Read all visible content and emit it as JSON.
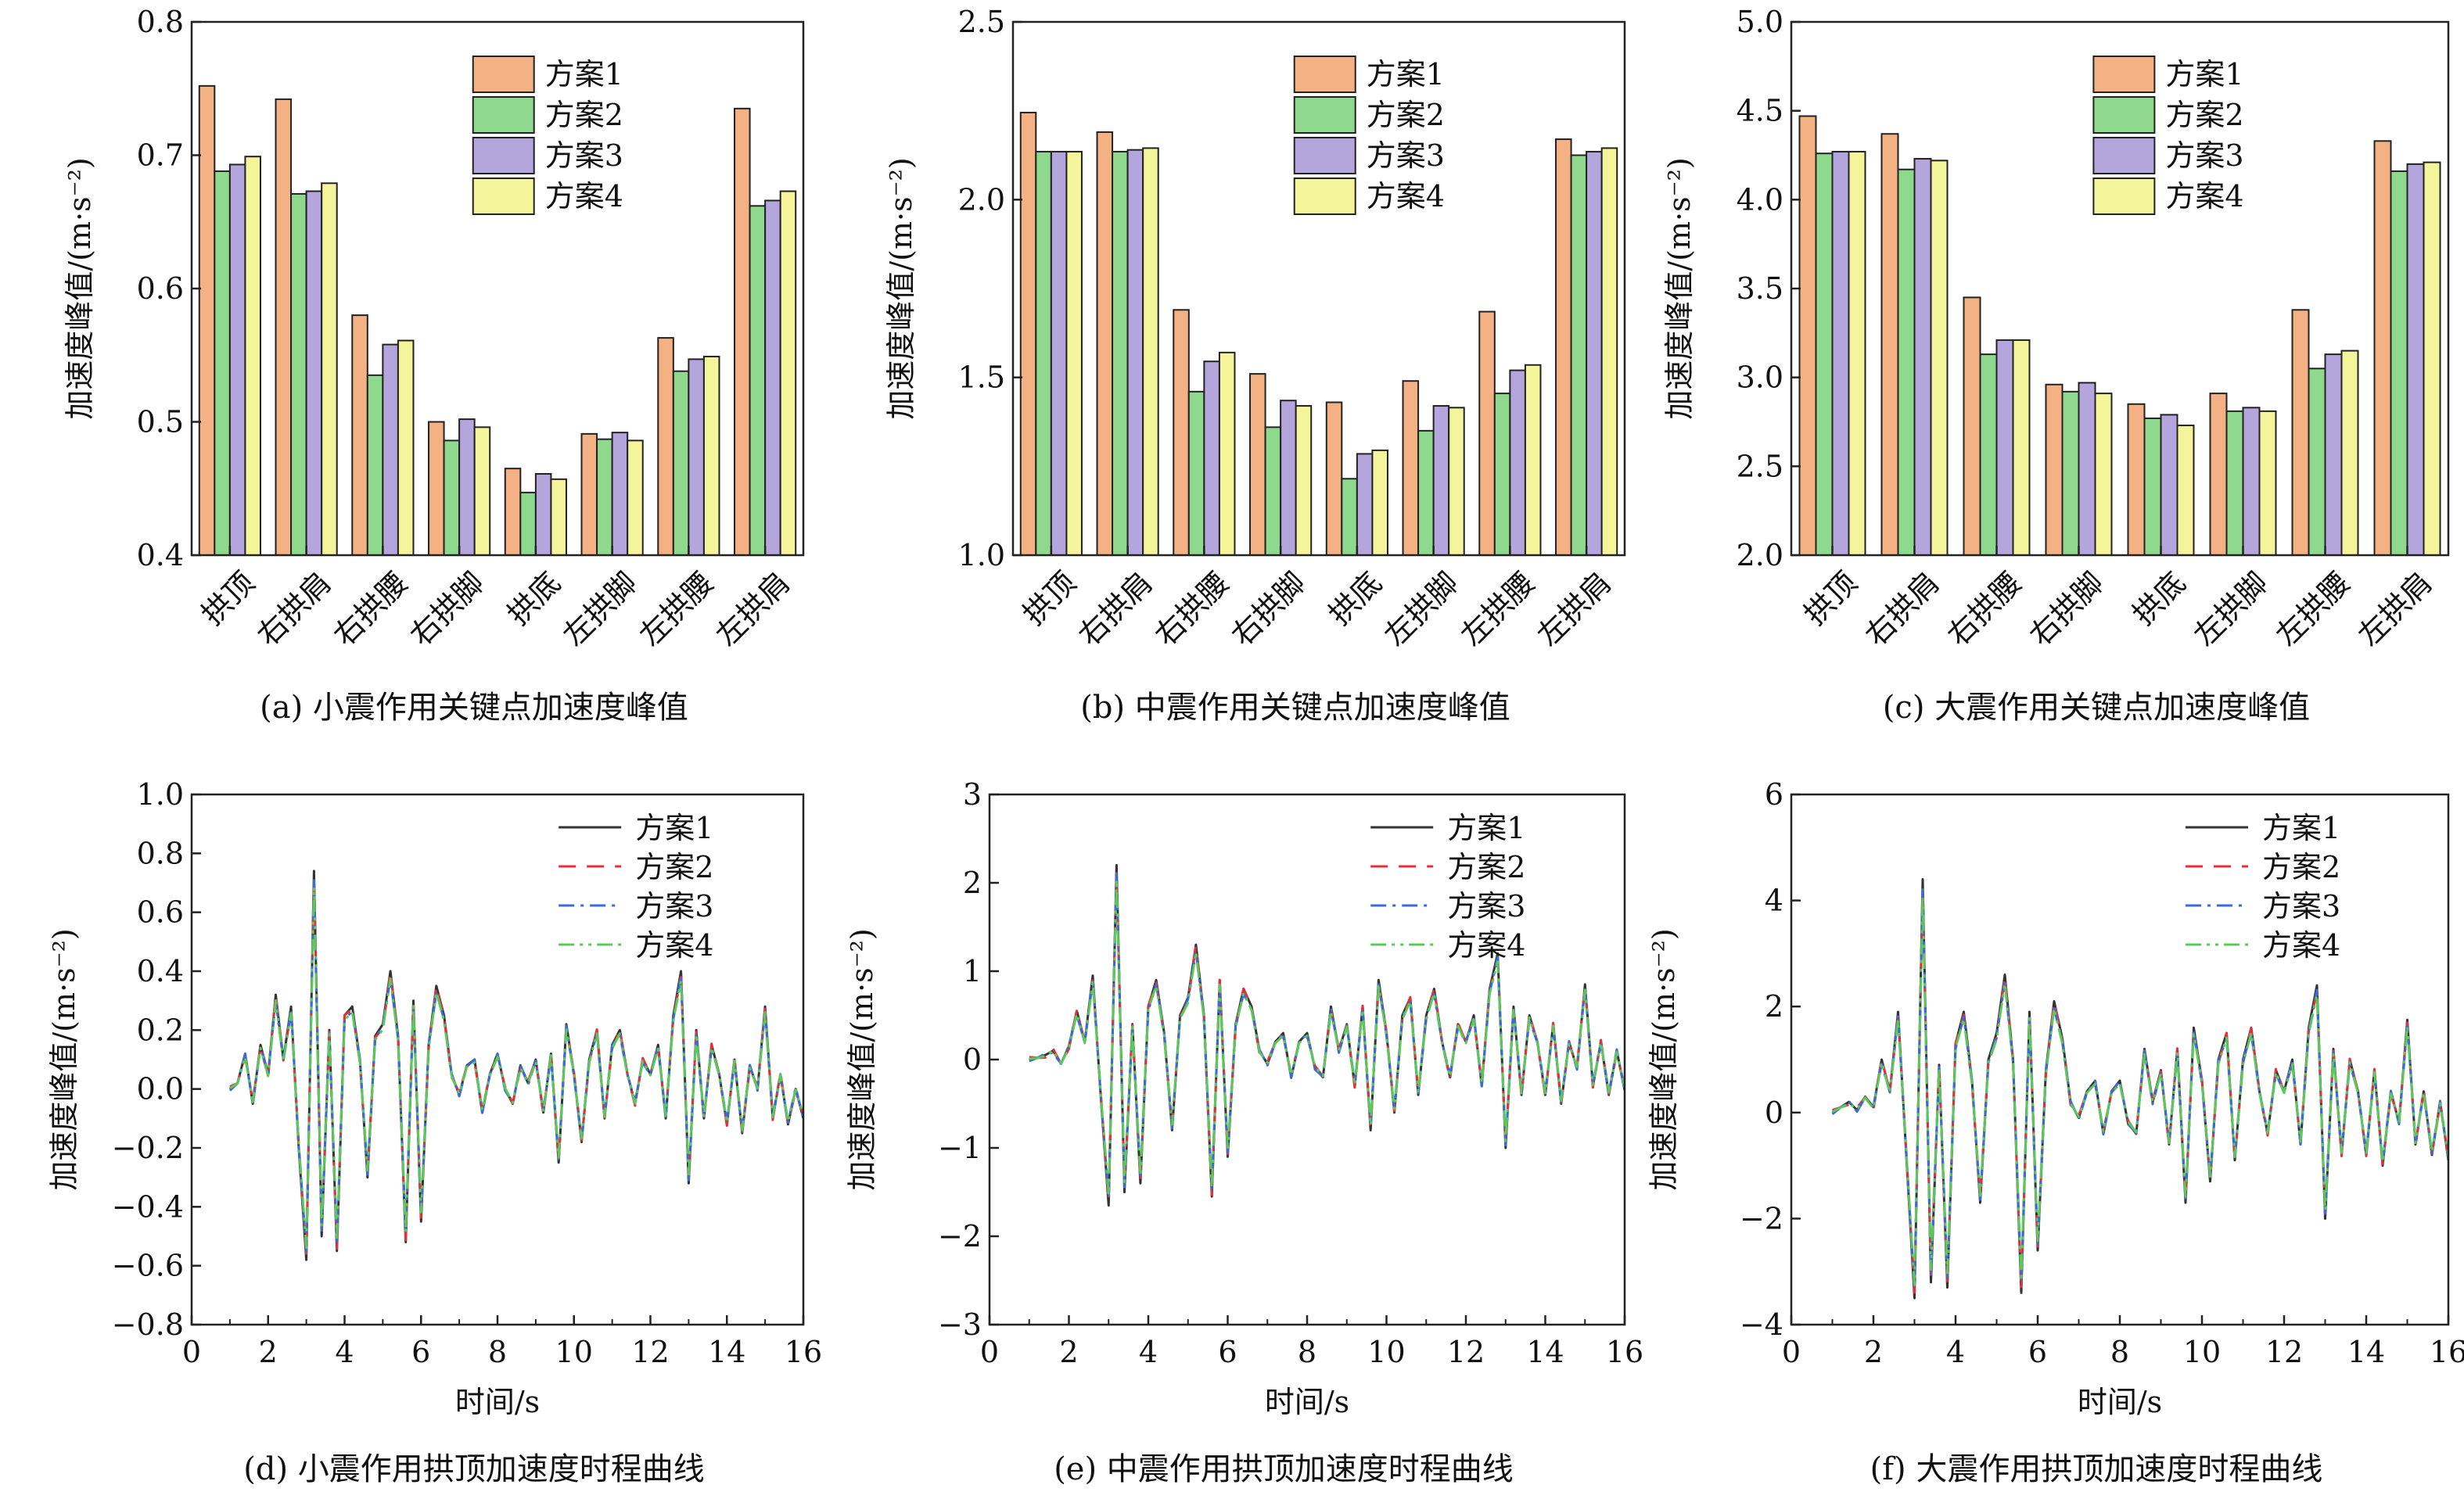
{
  "charts": [
    {
      "id": "a",
      "type": "bar",
      "caption": "(a) 小震作用关键点加速度峰值",
      "ylabel": "加速度峰值/(m·s⁻²)",
      "xlabel": "",
      "ylim": [
        0.4,
        0.8
      ],
      "yticks": [
        "0.4",
        "0.5",
        "0.6",
        "0.7",
        "0.8"
      ],
      "legend_position": "top-right",
      "categories": [
        "拱顶",
        "右拱肩",
        "右拱腰",
        "右拱脚",
        "拱底",
        "左拱脚",
        "左拱腰",
        "左拱肩"
      ],
      "series": [
        {
          "name": "方案1",
          "color": "#F4B183",
          "values": [
            0.752,
            0.742,
            0.58,
            0.5,
            0.465,
            0.491,
            0.563,
            0.735
          ]
        },
        {
          "name": "方案2",
          "color": "#8FD98F",
          "values": [
            0.688,
            0.671,
            0.535,
            0.486,
            0.447,
            0.487,
            0.538,
            0.662
          ]
        },
        {
          "name": "方案3",
          "color": "#B4A6DC",
          "values": [
            0.693,
            0.673,
            0.558,
            0.502,
            0.461,
            0.492,
            0.547,
            0.666
          ]
        },
        {
          "name": "方案4",
          "color": "#F4F49A",
          "values": [
            0.699,
            0.679,
            0.561,
            0.496,
            0.457,
            0.486,
            0.549,
            0.673
          ]
        }
      ]
    },
    {
      "id": "b",
      "type": "bar",
      "caption": "(b) 中震作用关键点加速度峰值",
      "ylabel": "加速度峰值/(m·s⁻²)",
      "xlabel": "",
      "ylim": [
        1.0,
        2.5
      ],
      "yticks": [
        "1.0",
        "1.5",
        "2.0",
        "2.5"
      ],
      "legend_position": "top-right",
      "categories": [
        "拱顶",
        "右拱肩",
        "右拱腰",
        "右拱脚",
        "拱底",
        "左拱脚",
        "左拱腰",
        "左拱肩"
      ],
      "series": [
        {
          "name": "方案1",
          "color": "#F4B183",
          "values": [
            2.245,
            2.19,
            1.69,
            1.51,
            1.43,
            1.49,
            1.685,
            2.17
          ]
        },
        {
          "name": "方案2",
          "color": "#8FD98F",
          "values": [
            2.135,
            2.135,
            1.46,
            1.36,
            1.215,
            1.35,
            1.455,
            2.125
          ]
        },
        {
          "name": "方案3",
          "color": "#B4A6DC",
          "values": [
            2.135,
            2.14,
            1.545,
            1.435,
            1.285,
            1.42,
            1.52,
            2.135
          ]
        },
        {
          "name": "方案4",
          "color": "#F4F49A",
          "values": [
            2.135,
            2.145,
            1.57,
            1.42,
            1.295,
            1.415,
            1.535,
            2.145
          ]
        }
      ]
    },
    {
      "id": "c",
      "type": "bar",
      "caption": "(c) 大震作用关键点加速度峰值",
      "ylabel": "加速度峰值/(m·s⁻²)",
      "xlabel": "",
      "ylim": [
        2.0,
        5.0
      ],
      "yticks": [
        "2.0",
        "2.5",
        "3.0",
        "3.5",
        "4.0",
        "4.5",
        "5.0"
      ],
      "legend_position": "top-right",
      "categories": [
        "拱顶",
        "右拱肩",
        "右拱腰",
        "右拱脚",
        "拱底",
        "左拱脚",
        "左拱腰",
        "左拱肩"
      ],
      "series": [
        {
          "name": "方案1",
          "color": "#F4B183",
          "values": [
            4.47,
            4.37,
            3.45,
            2.96,
            2.85,
            2.91,
            3.38,
            4.33
          ]
        },
        {
          "name": "方案2",
          "color": "#8FD98F",
          "values": [
            4.26,
            4.17,
            3.13,
            2.92,
            2.77,
            2.81,
            3.05,
            4.16
          ]
        },
        {
          "name": "方案3",
          "color": "#B4A6DC",
          "values": [
            4.27,
            4.23,
            3.21,
            2.97,
            2.79,
            2.83,
            3.13,
            4.2
          ]
        },
        {
          "name": "方案4",
          "color": "#F4F49A",
          "values": [
            4.27,
            4.22,
            3.21,
            2.91,
            2.73,
            2.81,
            3.15,
            4.21
          ]
        }
      ]
    },
    {
      "id": "d",
      "type": "line",
      "caption": "(d) 小震作用拱顶加速度时程曲线",
      "ylabel": "加速度峰值/(m·s⁻²)",
      "xlabel": "时间/s",
      "xlim": [
        0,
        16
      ],
      "ylim": [
        -0.8,
        1.0
      ],
      "xticks": [
        "0",
        "2",
        "4",
        "6",
        "8",
        "10",
        "12",
        "14",
        "16"
      ],
      "yticks": [
        "−0.8",
        "−0.6",
        "−0.4",
        "−0.2",
        "0.0",
        "0.2",
        "0.4",
        "0.6",
        "0.8",
        "1.0"
      ],
      "legend_position": "top-right",
      "series": [
        {
          "name": "方案1",
          "color": "#333333",
          "dash": "solid"
        },
        {
          "name": "方案2",
          "color": "#E5303A",
          "dash": "dashed"
        },
        {
          "name": "方案3",
          "color": "#3A6BD8",
          "dash": "dashdot"
        },
        {
          "name": "方案4",
          "color": "#5CC85C",
          "dash": "dashdotdot"
        }
      ],
      "x": [
        1.0,
        1.2,
        1.4,
        1.6,
        1.8,
        2.0,
        2.2,
        2.4,
        2.6,
        2.8,
        3.0,
        3.2,
        3.4,
        3.6,
        3.8,
        4.0,
        4.2,
        4.4,
        4.6,
        4.8,
        5.0,
        5.2,
        5.4,
        5.6,
        5.8,
        6.0,
        6.2,
        6.4,
        6.6,
        6.8,
        7.0,
        7.2,
        7.4,
        7.6,
        7.8,
        8.0,
        8.2,
        8.4,
        8.6,
        8.8,
        9.0,
        9.2,
        9.4,
        9.6,
        9.8,
        10.0,
        10.2,
        10.4,
        10.6,
        10.8,
        11.0,
        11.2,
        11.4,
        11.6,
        11.8,
        12.0,
        12.2,
        12.4,
        12.6,
        12.8,
        13.0,
        13.2,
        13.4,
        13.6,
        13.8,
        14.0,
        14.2,
        14.4,
        14.6,
        14.8,
        15.0,
        15.2,
        15.4,
        15.6,
        15.8,
        16.0
      ],
      "y_base": [
        0.0,
        0.02,
        0.12,
        -0.05,
        0.15,
        0.05,
        0.32,
        0.1,
        0.28,
        -0.2,
        -0.58,
        0.74,
        -0.5,
        0.2,
        -0.55,
        0.25,
        0.28,
        0.1,
        -0.3,
        0.18,
        0.22,
        0.4,
        0.18,
        -0.52,
        0.3,
        -0.45,
        0.15,
        0.35,
        0.25,
        0.05,
        -0.02,
        0.08,
        0.1,
        -0.08,
        0.05,
        0.12,
        0.0,
        -0.05,
        0.08,
        0.02,
        0.1,
        -0.08,
        0.12,
        -0.25,
        0.22,
        0.05,
        -0.18,
        0.1,
        0.2,
        -0.1,
        0.15,
        0.2,
        0.05,
        -0.05,
        0.1,
        0.05,
        0.15,
        -0.1,
        0.25,
        0.4,
        -0.32,
        0.2,
        -0.1,
        0.15,
        0.05,
        -0.12,
        0.1,
        -0.15,
        0.08,
        0.0,
        0.28,
        -0.1,
        0.05,
        -0.12,
        0.0,
        -0.1
      ]
    },
    {
      "id": "e",
      "type": "line",
      "caption": "(e) 中震作用拱顶加速度时程曲线",
      "ylabel": "加速度峰值/(m·s⁻²)",
      "xlabel": "时间/s",
      "xlim": [
        0,
        16
      ],
      "ylim": [
        -3,
        3
      ],
      "xticks": [
        "0",
        "2",
        "4",
        "6",
        "8",
        "10",
        "12",
        "14",
        "16"
      ],
      "yticks": [
        "−3",
        "−2",
        "−1",
        "0",
        "1",
        "2",
        "3"
      ],
      "legend_position": "top-right",
      "series": [
        {
          "name": "方案1",
          "color": "#333333",
          "dash": "solid"
        },
        {
          "name": "方案2",
          "color": "#E5303A",
          "dash": "dashed"
        },
        {
          "name": "方案3",
          "color": "#3A6BD8",
          "dash": "dashdot"
        },
        {
          "name": "方案4",
          "color": "#5CC85C",
          "dash": "dashdotdot"
        }
      ],
      "x": [
        1.0,
        1.2,
        1.4,
        1.6,
        1.8,
        2.0,
        2.2,
        2.4,
        2.6,
        2.8,
        3.0,
        3.2,
        3.4,
        3.6,
        3.8,
        4.0,
        4.2,
        4.4,
        4.6,
        4.8,
        5.0,
        5.2,
        5.4,
        5.6,
        5.8,
        6.0,
        6.2,
        6.4,
        6.6,
        6.8,
        7.0,
        7.2,
        7.4,
        7.6,
        7.8,
        8.0,
        8.2,
        8.4,
        8.6,
        8.8,
        9.0,
        9.2,
        9.4,
        9.6,
        9.8,
        10.0,
        10.2,
        10.4,
        10.6,
        10.8,
        11.0,
        11.2,
        11.4,
        11.6,
        11.8,
        12.0,
        12.2,
        12.4,
        12.6,
        12.8,
        13.0,
        13.2,
        13.4,
        13.6,
        13.8,
        14.0,
        14.2,
        14.4,
        14.6,
        14.8,
        15.0,
        15.2,
        15.4,
        15.6,
        15.8,
        16.0
      ],
      "y_base": [
        0.0,
        0.02,
        0.05,
        0.1,
        -0.05,
        0.15,
        0.55,
        0.2,
        0.95,
        -0.4,
        -1.65,
        2.2,
        -1.5,
        0.4,
        -1.4,
        0.6,
        0.9,
        0.3,
        -0.8,
        0.5,
        0.7,
        1.3,
        0.5,
        -1.55,
        0.9,
        -1.1,
        0.4,
        0.8,
        0.6,
        0.1,
        -0.05,
        0.2,
        0.3,
        -0.2,
        0.2,
        0.3,
        -0.1,
        -0.2,
        0.6,
        0.1,
        0.4,
        -0.3,
        0.6,
        -0.8,
        0.9,
        0.3,
        -0.6,
        0.5,
        0.7,
        -0.4,
        0.5,
        0.8,
        0.2,
        -0.2,
        0.4,
        0.2,
        0.5,
        -0.3,
        0.8,
        1.2,
        -1.0,
        0.6,
        -0.4,
        0.5,
        0.2,
        -0.4,
        0.4,
        -0.5,
        0.2,
        -0.1,
        0.85,
        -0.3,
        0.2,
        -0.4,
        0.1,
        -0.35
      ]
    },
    {
      "id": "f",
      "type": "line",
      "caption": "(f) 大震作用拱顶加速度时程曲线",
      "ylabel": "加速度峰值/(m·s⁻²)",
      "xlabel": "时间/s",
      "xlim": [
        0,
        16
      ],
      "ylim": [
        -4,
        6
      ],
      "xticks": [
        "0",
        "2",
        "4",
        "6",
        "8",
        "10",
        "12",
        "14",
        "16"
      ],
      "yticks": [
        "−4",
        "−2",
        "0",
        "2",
        "4",
        "6"
      ],
      "legend_position": "top-right",
      "series": [
        {
          "name": "方案1",
          "color": "#333333",
          "dash": "solid"
        },
        {
          "name": "方案2",
          "color": "#E5303A",
          "dash": "dashed"
        },
        {
          "name": "方案3",
          "color": "#3A6BD8",
          "dash": "dashdot"
        },
        {
          "name": "方案4",
          "color": "#5CC85C",
          "dash": "dashdotdot"
        }
      ],
      "x": [
        1.0,
        1.2,
        1.4,
        1.6,
        1.8,
        2.0,
        2.2,
        2.4,
        2.6,
        2.8,
        3.0,
        3.2,
        3.4,
        3.6,
        3.8,
        4.0,
        4.2,
        4.4,
        4.6,
        4.8,
        5.0,
        5.2,
        5.4,
        5.6,
        5.8,
        6.0,
        6.2,
        6.4,
        6.6,
        6.8,
        7.0,
        7.2,
        7.4,
        7.6,
        7.8,
        8.0,
        8.2,
        8.4,
        8.6,
        8.8,
        9.0,
        9.2,
        9.4,
        9.6,
        9.8,
        10.0,
        10.2,
        10.4,
        10.6,
        10.8,
        11.0,
        11.2,
        11.4,
        11.6,
        11.8,
        12.0,
        12.2,
        12.4,
        12.6,
        12.8,
        13.0,
        13.2,
        13.4,
        13.6,
        13.8,
        14.0,
        14.2,
        14.4,
        14.6,
        14.8,
        15.0,
        15.2,
        15.4,
        15.6,
        15.8,
        16.0
      ],
      "y_base": [
        0.0,
        0.1,
        0.2,
        0.05,
        0.3,
        0.1,
        1.0,
        0.4,
        1.9,
        -0.8,
        -3.5,
        4.4,
        -3.2,
        0.9,
        -3.3,
        1.3,
        1.9,
        0.6,
        -1.7,
        1.0,
        1.5,
        2.6,
        1.0,
        -3.4,
        1.9,
        -2.6,
        0.8,
        2.1,
        1.4,
        0.2,
        -0.1,
        0.4,
        0.6,
        -0.4,
        0.4,
        0.6,
        -0.2,
        -0.4,
        1.2,
        0.2,
        0.8,
        -0.6,
        1.2,
        -1.7,
        1.6,
        0.6,
        -1.3,
        1.0,
        1.5,
        -0.9,
        1.0,
        1.6,
        0.4,
        -0.4,
        0.8,
        0.4,
        1.0,
        -0.6,
        1.6,
        2.4,
        -2.0,
        1.2,
        -0.8,
        1.0,
        0.4,
        -0.8,
        0.8,
        -1.0,
        0.4,
        -0.2,
        1.75,
        -0.6,
        0.4,
        -0.8,
        0.2,
        -0.9
      ]
    }
  ]
}
